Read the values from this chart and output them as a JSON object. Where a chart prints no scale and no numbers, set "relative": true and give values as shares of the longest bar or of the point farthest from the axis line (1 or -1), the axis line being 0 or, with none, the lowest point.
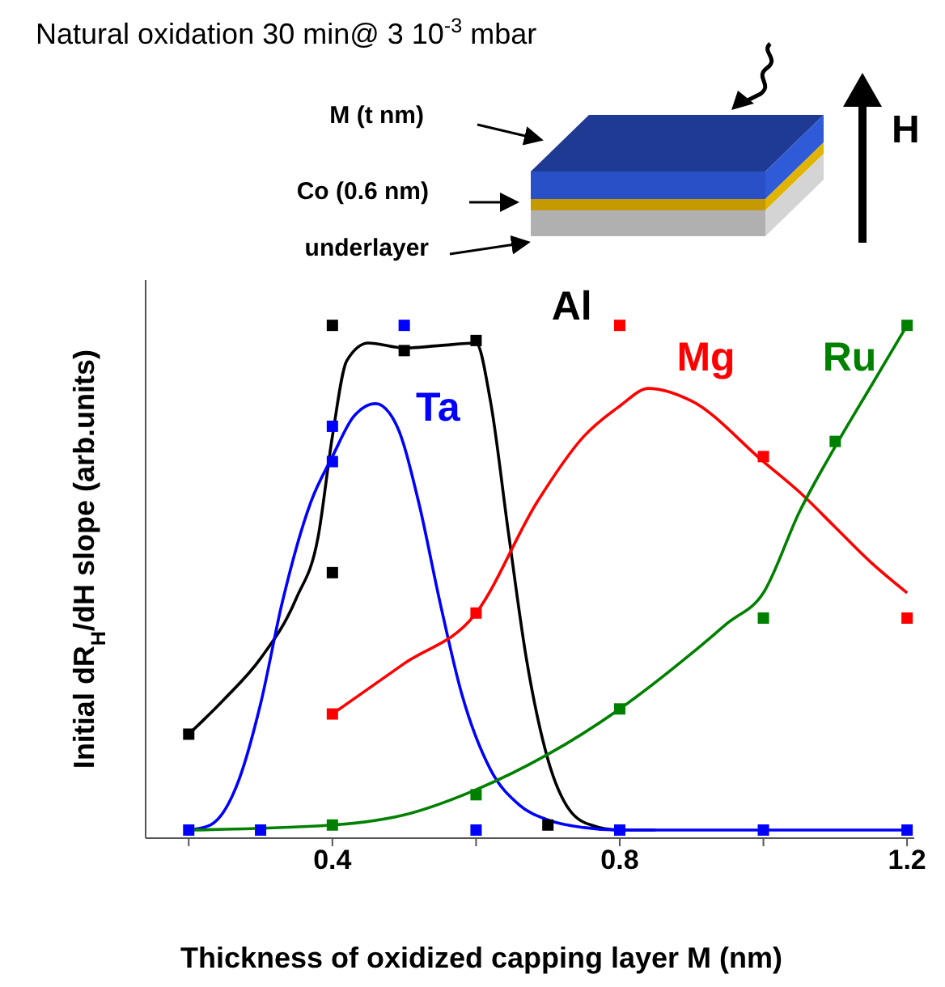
{
  "chart_data": {
    "type": "scatter",
    "title": "Natural oxidation 30 min@ 3 10$^{-3}$ mbar",
    "xlabel": "Thickness of oxidized capping layer M (nm)",
    "ylabel": "Initial dR$_{H}$/dH slope (arb.units)",
    "relative": true,
    "marker": "square",
    "xlim": [
      0.14,
      1.21
    ],
    "xticks": [
      {
        "value": 0.2,
        "label": null
      },
      {
        "value": 0.4,
        "label": "0.4"
      },
      {
        "value": 0.6,
        "label": null
      },
      {
        "value": 0.8,
        "label": "0.8"
      },
      {
        "value": 1.0,
        "label": null
      },
      {
        "value": 1.2,
        "label": "1.2"
      }
    ],
    "annotations": [
      "M (t nm)",
      "Co (0.6 nm)",
      "underlayer",
      "H"
    ],
    "series": [
      {
        "name": "Al",
        "color": "#000000",
        "x": [
          0.2,
          0.4,
          0.4,
          0.5,
          0.6,
          0.7
        ],
        "values": [
          0.19,
          1.0,
          0.51,
          0.95,
          0.97,
          0.01
        ]
      },
      {
        "name": "Ta",
        "color": "#0000ff",
        "x": [
          0.2,
          0.3,
          0.4,
          0.4,
          0.5,
          0.6,
          0.8,
          1.0,
          1.2
        ],
        "values": [
          0,
          0,
          0.8,
          0.73,
          1.0,
          0,
          0,
          0,
          0
        ]
      },
      {
        "name": "Mg",
        "color": "#ff0000",
        "x": [
          0.4,
          0.6,
          0.8,
          1.0,
          1.2
        ],
        "values": [
          0.23,
          0.43,
          1.0,
          0.74,
          0.42
        ]
      },
      {
        "name": "Ru",
        "color": "#008000",
        "x": [
          0.4,
          0.6,
          0.8,
          1.0,
          1.1,
          1.2
        ],
        "values": [
          0.01,
          0.07,
          0.24,
          0.42,
          0.77,
          1.0
        ]
      },
      {
        "type": "line",
        "marker": "none",
        "color": "#000000",
        "x": [
          0.2,
          0.25,
          0.3,
          0.35,
          0.38,
          0.4,
          0.42,
          0.45,
          0.5,
          0.55,
          0.6,
          0.62,
          0.645,
          0.67,
          0.7,
          0.73,
          0.76,
          0.8,
          0.85
        ],
        "values": [
          0.19,
          0.26,
          0.34,
          0.46,
          0.58,
          0.78,
          0.93,
          0.965,
          0.955,
          0.96,
          0.965,
          0.85,
          0.59,
          0.34,
          0.14,
          0.04,
          0.01,
          0,
          0
        ]
      },
      {
        "type": "line",
        "marker": "none",
        "color": "#0000ff",
        "x": [
          0.2,
          0.23,
          0.27,
          0.3,
          0.33,
          0.37,
          0.4,
          0.43,
          0.46,
          0.49,
          0.52,
          0.55,
          0.58,
          0.62,
          0.66,
          0.7,
          0.75,
          0.8,
          1.2
        ],
        "values": [
          0,
          0.01,
          0.1,
          0.25,
          0.45,
          0.65,
          0.74,
          0.82,
          0.845,
          0.8,
          0.65,
          0.45,
          0.27,
          0.12,
          0.05,
          0.02,
          0.005,
          0,
          0
        ]
      },
      {
        "type": "line",
        "marker": "none",
        "color": "#ff0000",
        "x": [
          0.4,
          0.5,
          0.6,
          0.685,
          0.75,
          0.8,
          0.84,
          0.9,
          1.0,
          1.05,
          1.1,
          1.15,
          1.2
        ],
        "values": [
          0.23,
          0.33,
          0.43,
          0.65,
          0.78,
          0.84,
          0.875,
          0.85,
          0.73,
          0.67,
          0.6,
          0.53,
          0.47
        ]
      },
      {
        "type": "line",
        "marker": "none",
        "color": "#008000",
        "x": [
          0.2,
          0.4,
          0.5,
          0.6,
          0.7,
          0.8,
          0.9,
          0.95,
          1.0,
          1.05,
          1.1,
          1.15,
          1.2
        ],
        "values": [
          0,
          0.01,
          0.03,
          0.08,
          0.15,
          0.24,
          0.35,
          0.41,
          0.47,
          0.63,
          0.76,
          0.88,
          1.0
        ]
      }
    ]
  }
}
